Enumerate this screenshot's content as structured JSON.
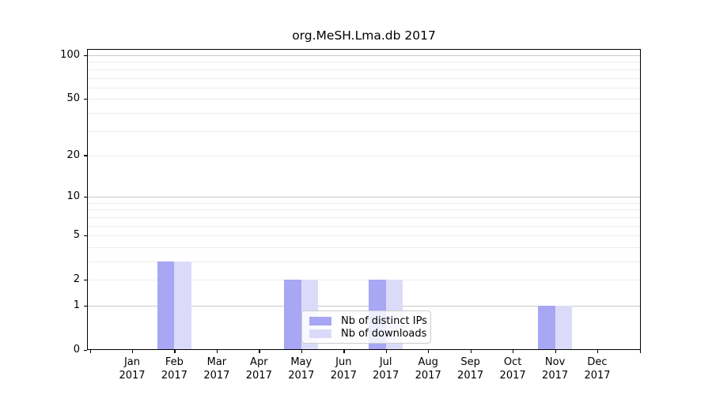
{
  "title": "org.MeSH.Lma.db 2017",
  "chart_data": {
    "type": "bar",
    "title": "org.MeSH.Lma.db 2017",
    "x_categories": [
      "Jan 2017",
      "Feb 2017",
      "Mar 2017",
      "Apr 2017",
      "May 2017",
      "Jun 2017",
      "Jul 2017",
      "Aug 2017",
      "Sep 2017",
      "Oct 2017",
      "Nov 2017",
      "Dec 2017"
    ],
    "months": [
      "Jan",
      "Feb",
      "Mar",
      "Apr",
      "May",
      "Jun",
      "Jul",
      "Aug",
      "Sep",
      "Oct",
      "Nov",
      "Dec"
    ],
    "year": "2017",
    "series": [
      {
        "name": "Nb of distinct IPs",
        "color": "#a7a7f3",
        "values": [
          0,
          3,
          0,
          0,
          2,
          0,
          2,
          0,
          0,
          0,
          1,
          0
        ]
      },
      {
        "name": "Nb of downloads",
        "color": "#dbdbf9",
        "values": [
          0,
          3,
          0,
          0,
          2,
          0,
          2,
          0,
          0,
          0,
          1,
          0
        ]
      }
    ],
    "xlabel": "",
    "ylabel": "",
    "ylim": [
      0,
      100
    ],
    "y_scale": "log10(value+1)",
    "y_ticks": [
      100,
      50,
      20,
      10,
      5,
      2,
      1,
      0
    ],
    "y_minor_gridlines": [
      2,
      3,
      4,
      5,
      6,
      7,
      8,
      9,
      20,
      30,
      40,
      50,
      60,
      70,
      80,
      90
    ],
    "y_major_gridlines": [
      1,
      10,
      100
    ],
    "grid": "horizontal-only",
    "legend_position": "lower-center-inside"
  },
  "colors": {
    "bar_distinct_ips": "#a7a7f3",
    "bar_downloads": "#dbdbf9",
    "grid_minor": "#ededed",
    "grid_major": "#c8c8c8",
    "axis": "#000000",
    "legend_border": "#cccccc"
  }
}
